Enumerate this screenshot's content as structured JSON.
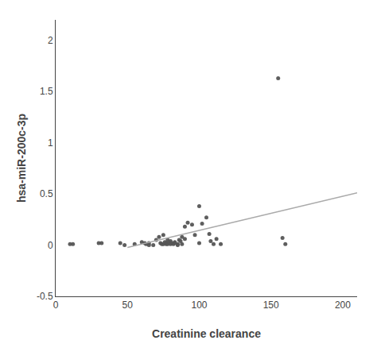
{
  "chart_data": {
    "type": "scatter",
    "xlabel": "Creatinine clearance",
    "ylabel": "hsa-miR-200c-3p",
    "xlim": [
      0,
      210
    ],
    "ylim": [
      -0.5,
      2.2
    ],
    "xticks": [
      0,
      50,
      100,
      150,
      200
    ],
    "yticks": [
      -0.5,
      0,
      0.5,
      1,
      1.5,
      2
    ],
    "grid": false,
    "series": [
      {
        "type": "scatter",
        "color": "#555555",
        "marker": "circle",
        "x": [
          10,
          12,
          30,
          32,
          45,
          48,
          55,
          60,
          62,
          63,
          65,
          65,
          68,
          70,
          72,
          73,
          74,
          75,
          75,
          76,
          77,
          77,
          78,
          78,
          79,
          80,
          80,
          81,
          82,
          83,
          83,
          85,
          85,
          86,
          87,
          88,
          88,
          90,
          90,
          92,
          95,
          97,
          100,
          100,
          102,
          105,
          107,
          108,
          110,
          112,
          115,
          155,
          158,
          160
        ],
        "values": [
          0.01,
          0.01,
          0.02,
          0.02,
          0.02,
          0.0,
          0.01,
          0.03,
          0.02,
          0.01,
          0.02,
          0.0,
          0.0,
          0.05,
          0.08,
          0.02,
          0.01,
          0.1,
          0.01,
          0.03,
          0.02,
          0.01,
          0.05,
          0.01,
          0.03,
          0.04,
          0.01,
          0.02,
          0.01,
          0.03,
          0.02,
          0.01,
          0.0,
          0.05,
          0.04,
          0.08,
          0.01,
          0.18,
          0.06,
          0.22,
          0.2,
          0.1,
          0.38,
          0.02,
          0.21,
          0.27,
          0.11,
          0.04,
          0.01,
          0.06,
          0.01,
          1.63,
          0.07,
          0.01
        ]
      },
      {
        "type": "line",
        "color": "#aaaaaa",
        "line_style": "solid",
        "x": [
          50,
          210
        ],
        "values": [
          -0.02323,
          0.51019
        ]
      }
    ]
  }
}
